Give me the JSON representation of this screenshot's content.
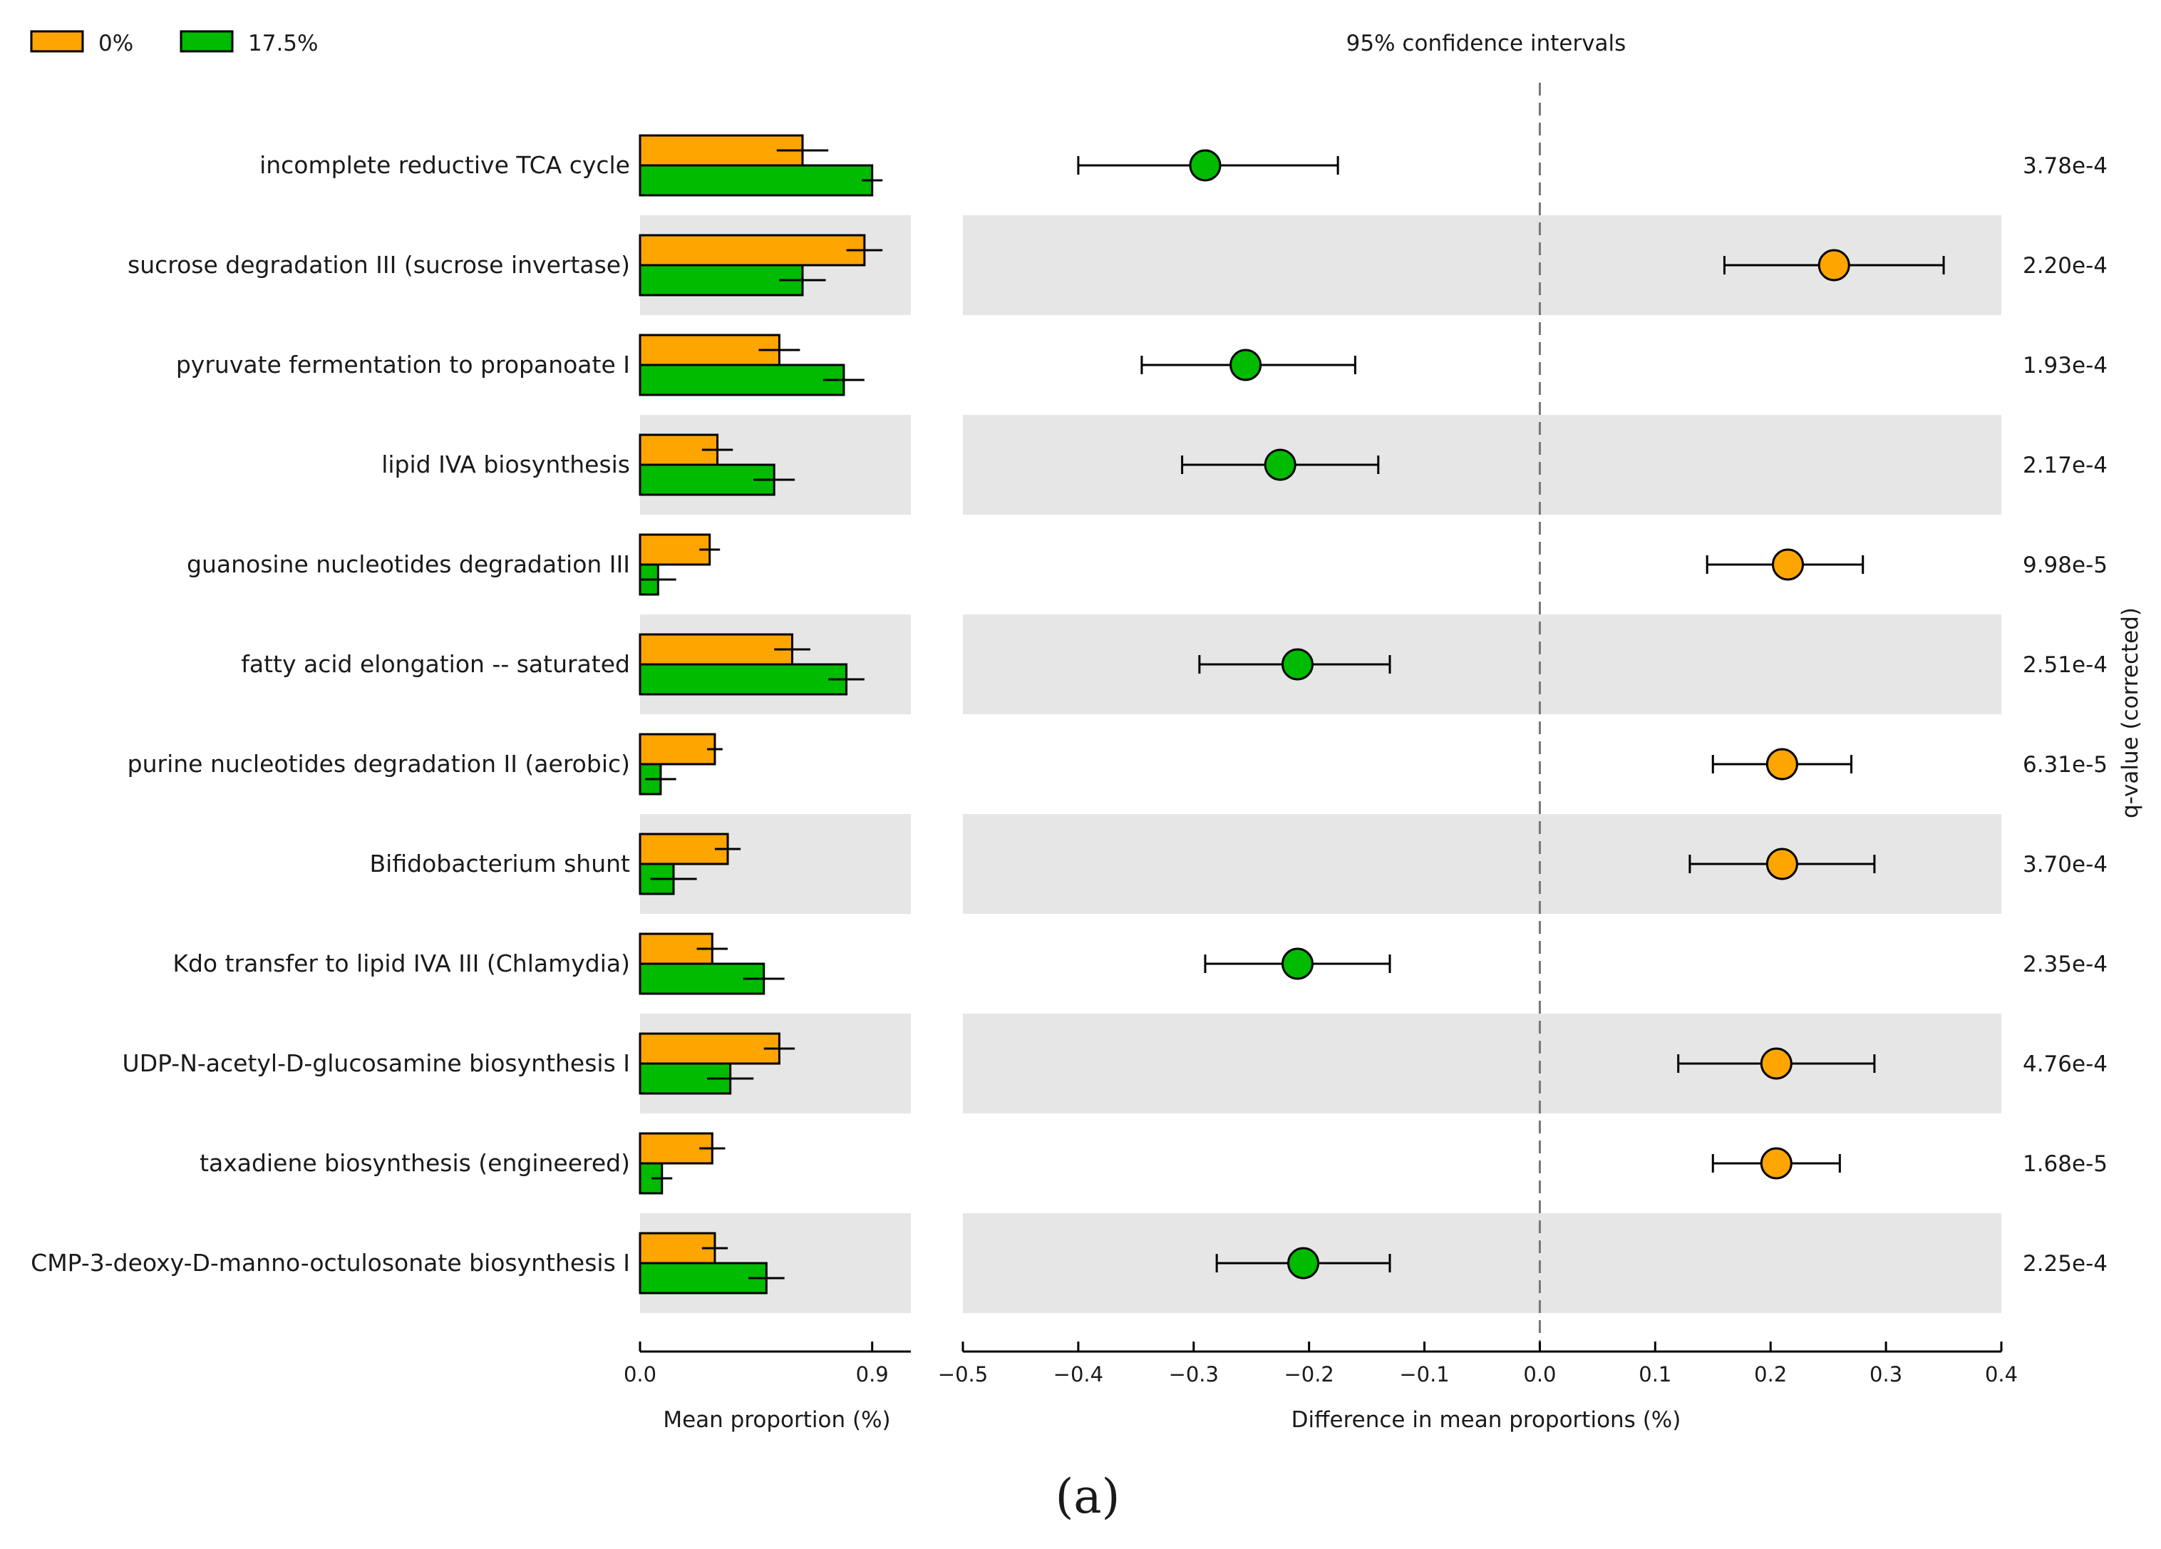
{
  "chart_data": {
    "type": "extended-error-bar",
    "legend": [
      {
        "label": "0%",
        "color": "#FFA500"
      },
      {
        "label": "17.5%",
        "color": "#00BB00"
      }
    ],
    "ci_title": "95% confidence intervals",
    "left_xlabel": "Mean proportion (%)",
    "left_xlim": [
      0,
      1.05
    ],
    "left_ticks": [
      {
        "value": 0,
        "label": "0.0"
      },
      {
        "value": 0.9,
        "label": "0.9"
      }
    ],
    "right_xlabel": "Difference in mean proportions (%)",
    "right_xlim": [
      -0.5,
      0.4
    ],
    "right_ticks": [
      {
        "value": -0.5,
        "label": "−0.5"
      },
      {
        "value": -0.4,
        "label": "−0.4"
      },
      {
        "value": -0.3,
        "label": "−0.3"
      },
      {
        "value": -0.2,
        "label": "−0.2"
      },
      {
        "value": -0.1,
        "label": "−0.1"
      },
      {
        "value": 0.0,
        "label": "0.0"
      },
      {
        "value": 0.1,
        "label": "0.1"
      },
      {
        "value": 0.2,
        "label": "0.2"
      },
      {
        "value": 0.3,
        "label": "0.3"
      },
      {
        "value": 0.4,
        "label": "0.4"
      }
    ],
    "q_axis_label": "q-value (corrected)",
    "caption": "(a)",
    "pathways": [
      {
        "name": "incomplete reductive TCA cycle",
        "mean_0": 0.63,
        "sd_0": 0.1,
        "mean_175": 0.9,
        "sd_175": 0.04,
        "diff": -0.29,
        "ci_low": -0.4,
        "ci_high": -0.175,
        "q": "3.78e-4"
      },
      {
        "name": "sucrose degradation III (sucrose invertase)",
        "mean_0": 0.87,
        "sd_0": 0.07,
        "mean_175": 0.63,
        "sd_175": 0.09,
        "diff": 0.255,
        "ci_low": 0.16,
        "ci_high": 0.35,
        "q": "2.20e-4"
      },
      {
        "name": "pyruvate fermentation to propanoate I",
        "mean_0": 0.54,
        "sd_0": 0.08,
        "mean_175": 0.79,
        "sd_175": 0.08,
        "diff": -0.255,
        "ci_low": -0.345,
        "ci_high": -0.16,
        "q": "1.93e-4"
      },
      {
        "name": "lipid IVA biosynthesis",
        "mean_0": 0.3,
        "sd_0": 0.06,
        "mean_175": 0.52,
        "sd_175": 0.08,
        "diff": -0.225,
        "ci_low": -0.31,
        "ci_high": -0.14,
        "q": "2.17e-4"
      },
      {
        "name": "guanosine nucleotides degradation III",
        "mean_0": 0.27,
        "sd_0": 0.04,
        "mean_175": 0.07,
        "sd_175": 0.07,
        "diff": 0.215,
        "ci_low": 0.145,
        "ci_high": 0.28,
        "q": "9.98e-5"
      },
      {
        "name": "fatty acid elongation -- saturated",
        "mean_0": 0.59,
        "sd_0": 0.07,
        "mean_175": 0.8,
        "sd_175": 0.07,
        "diff": -0.21,
        "ci_low": -0.295,
        "ci_high": -0.13,
        "q": "2.51e-4"
      },
      {
        "name": "purine nucleotides degradation II (aerobic)",
        "mean_0": 0.29,
        "sd_0": 0.03,
        "mean_175": 0.08,
        "sd_175": 0.06,
        "diff": 0.21,
        "ci_low": 0.15,
        "ci_high": 0.27,
        "q": "6.31e-5"
      },
      {
        "name": "Bifidobacterium shunt",
        "mean_0": 0.34,
        "sd_0": 0.05,
        "mean_175": 0.13,
        "sd_175": 0.09,
        "diff": 0.21,
        "ci_low": 0.13,
        "ci_high": 0.29,
        "q": "3.70e-4"
      },
      {
        "name": "Kdo transfer to lipid IVA III (Chlamydia)",
        "mean_0": 0.28,
        "sd_0": 0.06,
        "mean_175": 0.48,
        "sd_175": 0.08,
        "diff": -0.21,
        "ci_low": -0.29,
        "ci_high": -0.13,
        "q": "2.35e-4"
      },
      {
        "name": "UDP-N-acetyl-D-glucosamine biosynthesis I",
        "mean_0": 0.54,
        "sd_0": 0.06,
        "mean_175": 0.35,
        "sd_175": 0.09,
        "diff": 0.205,
        "ci_low": 0.12,
        "ci_high": 0.29,
        "q": "4.76e-4"
      },
      {
        "name": "taxadiene biosynthesis (engineered)",
        "mean_0": 0.28,
        "sd_0": 0.05,
        "mean_175": 0.085,
        "sd_175": 0.04,
        "diff": 0.205,
        "ci_low": 0.15,
        "ci_high": 0.26,
        "q": "1.68e-5"
      },
      {
        "name": "CMP-3-deoxy-D-manno-octulosonate biosynthesis I",
        "mean_0": 0.29,
        "sd_0": 0.05,
        "mean_175": 0.49,
        "sd_175": 0.07,
        "diff": -0.205,
        "ci_low": -0.28,
        "ci_high": -0.13,
        "q": "2.25e-4"
      }
    ]
  }
}
